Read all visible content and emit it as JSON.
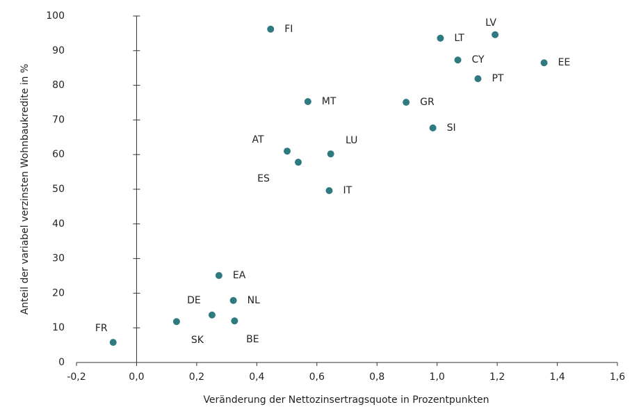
{
  "chart_data": {
    "type": "scatter",
    "xlabel": "Veränderung der Nettozinsertragsquote in Prozentpunkten",
    "ylabel": "Anteil der variabel verzinsten Wohnbaukredite in %",
    "labels": [
      "FI",
      "LV",
      "LT",
      "CY",
      "EE",
      "PT",
      "MT",
      "GR",
      "SI",
      "AT",
      "LU",
      "ES",
      "IT",
      "EA",
      "NL",
      "DE",
      "SK",
      "BE",
      "FR"
    ],
    "x": [
      0.446,
      1.193,
      1.011,
      1.069,
      1.356,
      1.136,
      0.57,
      0.897,
      0.986,
      0.501,
      0.646,
      0.538,
      0.641,
      0.274,
      0.322,
      0.251,
      0.133,
      0.326,
      -0.078
    ],
    "values": [
      96.2,
      94.6,
      93.6,
      87.3,
      86.5,
      81.9,
      75.3,
      75.1,
      67.7,
      61.0,
      60.2,
      57.8,
      49.6,
      25.1,
      17.9,
      13.7,
      11.8,
      12.0,
      5.8
    ],
    "color": "#2f7a80",
    "xlim": [
      -0.2,
      1.6
    ],
    "xticks": [
      {
        "value": -0.2,
        "label": "-0,2"
      },
      {
        "value": 0,
        "label": "0,0"
      },
      {
        "value": 0.2,
        "label": "0,2"
      },
      {
        "value": 0.4,
        "label": "0,4"
      },
      {
        "value": 0.6,
        "label": "0,6"
      },
      {
        "value": 0.8,
        "label": "0,8"
      },
      {
        "value": 1.0,
        "label": "1,0"
      },
      {
        "value": 1.2,
        "label": "1,2"
      },
      {
        "value": 1.4,
        "label": "1,4"
      },
      {
        "value": 1.6,
        "label": "1,6"
      }
    ],
    "ylim": [
      0,
      100
    ],
    "yticks": [
      0,
      10,
      20,
      30,
      40,
      50,
      60,
      70,
      80,
      90,
      100
    ]
  }
}
